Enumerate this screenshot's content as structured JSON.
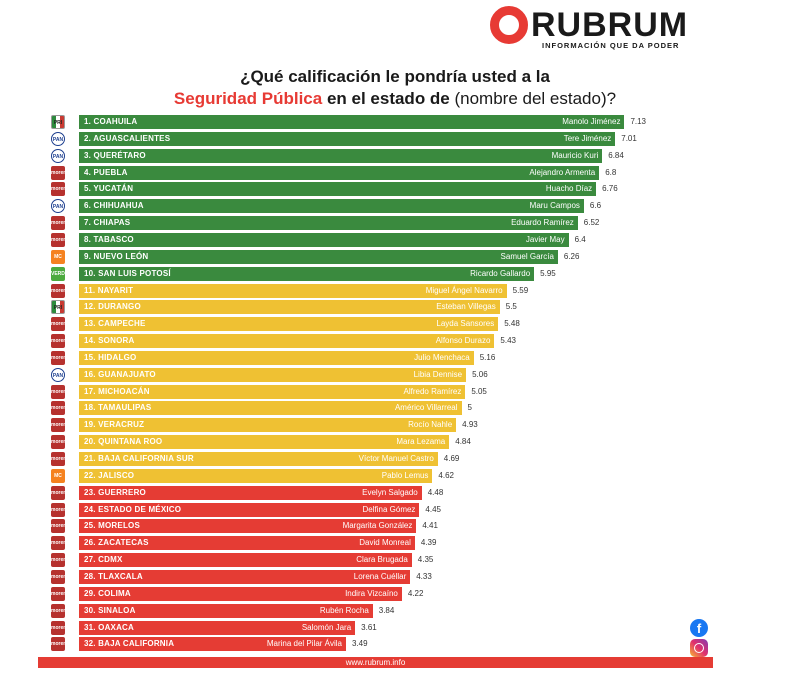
{
  "logo": {
    "word": "RUBRUM",
    "tagline": "INFORMACIÓN QUE DA PODER"
  },
  "title": {
    "line1": "¿Qué calificación le pondría usted a la",
    "line2_red": "Seguridad Pública",
    "line2_bold": " en el estado de",
    "line2_normal": " (nombre del estado)?"
  },
  "footer": {
    "url": "www.rubrum.info"
  },
  "social": {
    "facebook_icon": "facebook-icon",
    "instagram_icon": "instagram-icon"
  },
  "colors": {
    "green": "#3a8a3e",
    "yellow": "#efc133",
    "red": "#e53c34",
    "brand": "#e73a34"
  },
  "chart_data": {
    "type": "bar",
    "orientation": "horizontal",
    "xlim": [
      0,
      7.5
    ],
    "grid": false,
    "rows": [
      {
        "state": "1. COAHUILA",
        "governor": "Manolo Jiménez",
        "party": "pri",
        "value": 7.13,
        "label": "7.13",
        "tier": "green"
      },
      {
        "state": "2. AGUASCALIENTES",
        "governor": "Tere Jiménez",
        "party": "pan",
        "value": 7.01,
        "label": "7.01",
        "tier": "green"
      },
      {
        "state": "3. QUERÉTARO",
        "governor": "Mauricio Kuri",
        "party": "pan",
        "value": 6.84,
        "label": "6.84",
        "tier": "green"
      },
      {
        "state": "4. PUEBLA",
        "governor": "Alejandro Armenta",
        "party": "morena",
        "value": 6.8,
        "label": "6.8",
        "tier": "green"
      },
      {
        "state": "5. YUCATÁN",
        "governor": "Huacho Díaz",
        "party": "morena",
        "value": 6.76,
        "label": "6.76",
        "tier": "green"
      },
      {
        "state": "6. CHIHUAHUA",
        "governor": "Maru Campos",
        "party": "pan",
        "value": 6.6,
        "label": "6.6",
        "tier": "green"
      },
      {
        "state": "7. CHIAPAS",
        "governor": "Eduardo Ramírez",
        "party": "morena",
        "value": 6.52,
        "label": "6.52",
        "tier": "green"
      },
      {
        "state": "8. TABASCO",
        "governor": "Javier May",
        "party": "morena",
        "value": 6.4,
        "label": "6.4",
        "tier": "green"
      },
      {
        "state": "9. NUEVO LEÓN",
        "governor": "Samuel García",
        "party": "mc",
        "value": 6.26,
        "label": "6.26",
        "tier": "green"
      },
      {
        "state": "10. SAN LUIS POTOSÍ",
        "governor": "Ricardo Gallardo",
        "party": "pvem",
        "value": 5.95,
        "label": "5.95",
        "tier": "green"
      },
      {
        "state": "11. NAYARIT",
        "governor": "Miguel Ángel Navarro",
        "party": "morena",
        "value": 5.59,
        "label": "5.59",
        "tier": "yellow"
      },
      {
        "state": "12. DURANGO",
        "governor": "Esteban Villegas",
        "party": "pri",
        "value": 5.5,
        "label": "5.5",
        "tier": "yellow"
      },
      {
        "state": "13. CAMPECHE",
        "governor": "Layda Sansores",
        "party": "morena",
        "value": 5.48,
        "label": "5.48",
        "tier": "yellow"
      },
      {
        "state": "14. SONORA",
        "governor": "Alfonso Durazo",
        "party": "morena",
        "value": 5.43,
        "label": "5.43",
        "tier": "yellow"
      },
      {
        "state": "15. HIDALGO",
        "governor": "Julio Menchaca",
        "party": "morena",
        "value": 5.16,
        "label": "5.16",
        "tier": "yellow"
      },
      {
        "state": "16. GUANAJUATO",
        "governor": "Libia Dennise",
        "party": "pan",
        "value": 5.06,
        "label": "5.06",
        "tier": "yellow"
      },
      {
        "state": "17. MICHOACÁN",
        "governor": "Alfredo Ramírez",
        "party": "morena",
        "value": 5.05,
        "label": "5.05",
        "tier": "yellow"
      },
      {
        "state": "18. TAMAULIPAS",
        "governor": "Américo Villarreal",
        "party": "morena",
        "value": 5,
        "label": "5",
        "tier": "yellow"
      },
      {
        "state": "19. VERACRUZ",
        "governor": "Rocío Nahle",
        "party": "morena",
        "value": 4.93,
        "label": "4.93",
        "tier": "yellow"
      },
      {
        "state": "20. QUINTANA ROO",
        "governor": "Mara Lezama",
        "party": "morena",
        "value": 4.84,
        "label": "4.84",
        "tier": "yellow"
      },
      {
        "state": "21. BAJA CALIFORNIA SUR",
        "governor": "Víctor Manuel Castro",
        "party": "morena",
        "value": 4.69,
        "label": "4.69",
        "tier": "yellow"
      },
      {
        "state": "22. JALISCO",
        "governor": "Pablo Lemus",
        "party": "mc",
        "value": 4.62,
        "label": "4.62",
        "tier": "yellow"
      },
      {
        "state": "23. GUERRERO",
        "governor": "Evelyn Salgado",
        "party": "morena",
        "value": 4.48,
        "label": "4.48",
        "tier": "red"
      },
      {
        "state": "24. ESTADO DE MÉXICO",
        "governor": "Delfina Gómez",
        "party": "morena",
        "value": 4.45,
        "label": "4.45",
        "tier": "red"
      },
      {
        "state": "25. MORELOS",
        "governor": "Margarita González",
        "party": "morena",
        "value": 4.41,
        "label": "4.41",
        "tier": "red"
      },
      {
        "state": "26. ZACATECAS",
        "governor": "David Monreal",
        "party": "morena",
        "value": 4.39,
        "label": "4.39",
        "tier": "red"
      },
      {
        "state": "27. CDMX",
        "governor": "Clara Brugada",
        "party": "morena",
        "value": 4.35,
        "label": "4.35",
        "tier": "red"
      },
      {
        "state": "28. TLAXCALA",
        "governor": "Lorena Cuéllar",
        "party": "morena",
        "value": 4.33,
        "label": "4.33",
        "tier": "red"
      },
      {
        "state": "29. COLIMA",
        "governor": "Indira Vizcaíno",
        "party": "morena",
        "value": 4.22,
        "label": "4.22",
        "tier": "red"
      },
      {
        "state": "30. SINALOA",
        "governor": "Rubén Rocha",
        "party": "morena",
        "value": 3.84,
        "label": "3.84",
        "tier": "red"
      },
      {
        "state": "31. OAXACA",
        "governor": "Salomón Jara",
        "party": "morena",
        "value": 3.61,
        "label": "3.61",
        "tier": "red"
      },
      {
        "state": "32. BAJA CALIFORNIA",
        "governor": "Marina del Pilar Ávila",
        "party": "morena",
        "value": 3.49,
        "label": "3.49",
        "tier": "red"
      }
    ]
  }
}
